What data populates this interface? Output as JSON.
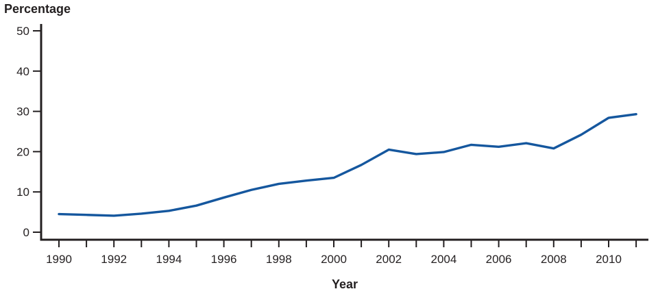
{
  "chart": {
    "y_axis_title": "Percentage",
    "x_axis_title": "Year"
  },
  "chart_data": {
    "type": "line",
    "title": "",
    "xlabel": "Year",
    "ylabel": "Percentage",
    "x": [
      1990,
      1991,
      1992,
      1993,
      1994,
      1995,
      1996,
      1997,
      1998,
      1999,
      2000,
      2001,
      2002,
      2003,
      2004,
      2005,
      2006,
      2007,
      2008,
      2009,
      2010,
      2011
    ],
    "series": [
      {
        "name": "percentage",
        "color": "#15579e",
        "values": [
          4.5,
          4.3,
          4.1,
          4.6,
          5.3,
          6.6,
          8.6,
          10.5,
          12.0,
          12.8,
          13.5,
          16.7,
          20.5,
          19.4,
          19.9,
          21.7,
          21.2,
          22.1,
          20.8,
          24.2,
          28.4,
          29.3
        ]
      }
    ],
    "ylim": [
      0,
      50
    ],
    "y_ticks": [
      0,
      10,
      20,
      30,
      40,
      50
    ],
    "x_tick_labels": [
      "1990",
      "1992",
      "1994",
      "1996",
      "1998",
      "2000",
      "2002",
      "2004",
      "2006",
      "2008",
      "2010"
    ],
    "grid": false,
    "legend": "none",
    "axis_color": "#231f20"
  }
}
